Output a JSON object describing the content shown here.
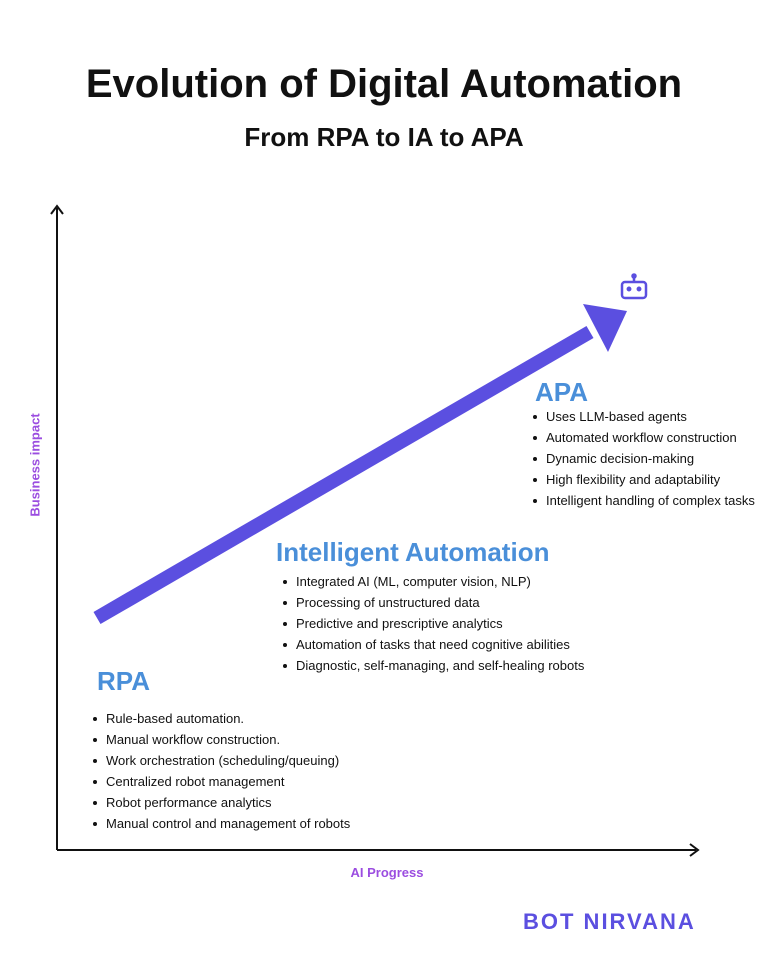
{
  "header": {
    "title": "Evolution of Digital Automation",
    "subtitle": "From RPA to IA to APA"
  },
  "axes": {
    "y_label": "Business impact",
    "x_label": "AI Progress"
  },
  "stages": [
    {
      "title": "RPA",
      "bullets": [
        "Rule-based automation.",
        "Manual workflow construction.",
        "Work orchestration (scheduling/queuing)",
        "Centralized robot management",
        "Robot performance analytics",
        "Manual control and management of robots"
      ]
    },
    {
      "title": "Intelligent Automation",
      "bullets": [
        "Integrated AI (ML, computer vision, NLP)",
        "Processing of unstructured data",
        "Predictive and prescriptive analytics",
        "Automation of tasks that need cognitive abilities",
        "Diagnostic, self-managing, and self-healing robots"
      ]
    },
    {
      "title": "APA",
      "bullets": [
        "Uses LLM-based agents",
        "Automated workflow construction",
        "Dynamic decision-making",
        "High flexibility and adaptability",
        "Intelligent handling of complex tasks"
      ]
    }
  ],
  "brand": "BOT NIRVANA"
}
